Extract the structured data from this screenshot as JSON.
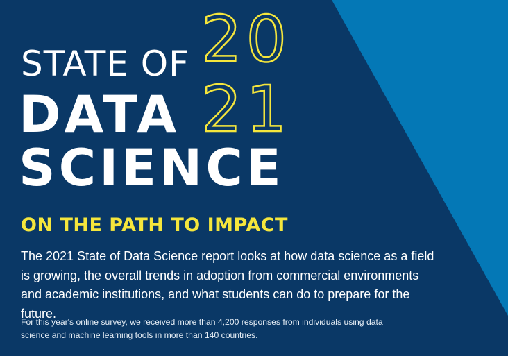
{
  "colors": {
    "background": "#0a3866",
    "stripe": "#0478b6",
    "accent_yellow": "#f5e63c",
    "text": "#ffffff"
  },
  "cover": {
    "title_line1": "STATE OF",
    "title_line2": "DATA",
    "title_line3": "SCIENCE",
    "year_top": "20",
    "year_bottom": "21",
    "subtitle": "ON THE PATH TO IMPACT",
    "intro": "The 2021 State of Data Science report looks at how data science as a field is growing, the overall trends in adoption from commercial environments and academic institutions, and what students can do to prepare for the future.",
    "survey_note": "For this year's online survey, we received more than 4,200 responses from individuals using data science and machine learning tools in more than 140 countries."
  }
}
